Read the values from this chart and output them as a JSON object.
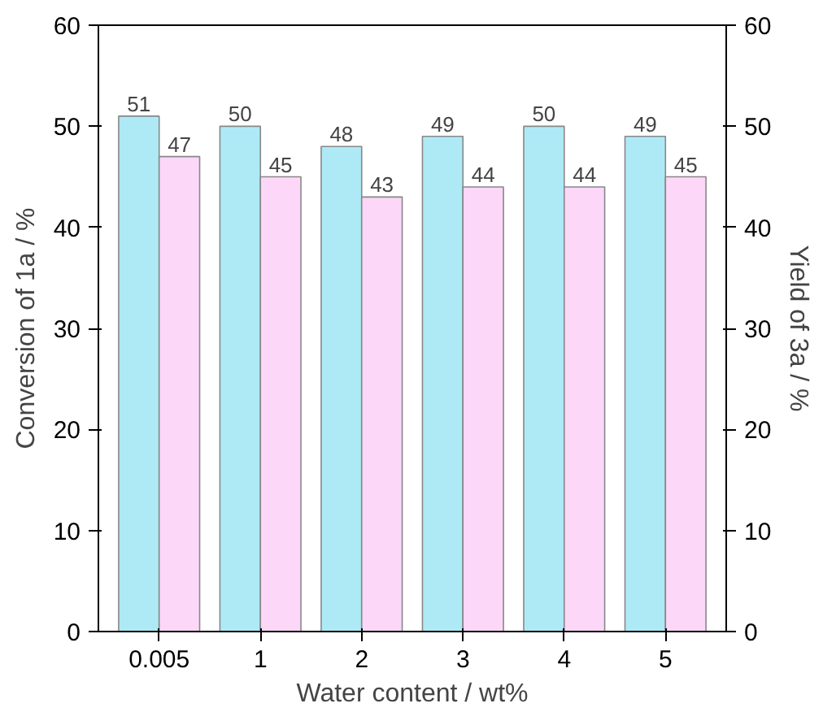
{
  "chart_data": {
    "type": "bar",
    "xlabel": "Water content / wt%",
    "ylabel": "Conversion of 1a / %",
    "y2label": "Yield of 3a / %",
    "categories": [
      "0.005",
      "1",
      "2",
      "3",
      "4",
      "5"
    ],
    "series": [
      {
        "color": "#aeeaf6",
        "values": [
          51,
          50,
          48,
          49,
          50,
          49
        ]
      },
      {
        "color": "#fcd7f8",
        "values": [
          47,
          45,
          43,
          44,
          44,
          45
        ]
      }
    ],
    "ylim": [
      0,
      60
    ],
    "yticks": [
      0,
      10,
      20,
      30,
      40,
      50,
      60
    ],
    "y2lim": [
      0,
      60
    ],
    "y2ticks": [
      0,
      10,
      20,
      30,
      40,
      50,
      60
    ],
    "data_labels": true,
    "grid": false
  }
}
